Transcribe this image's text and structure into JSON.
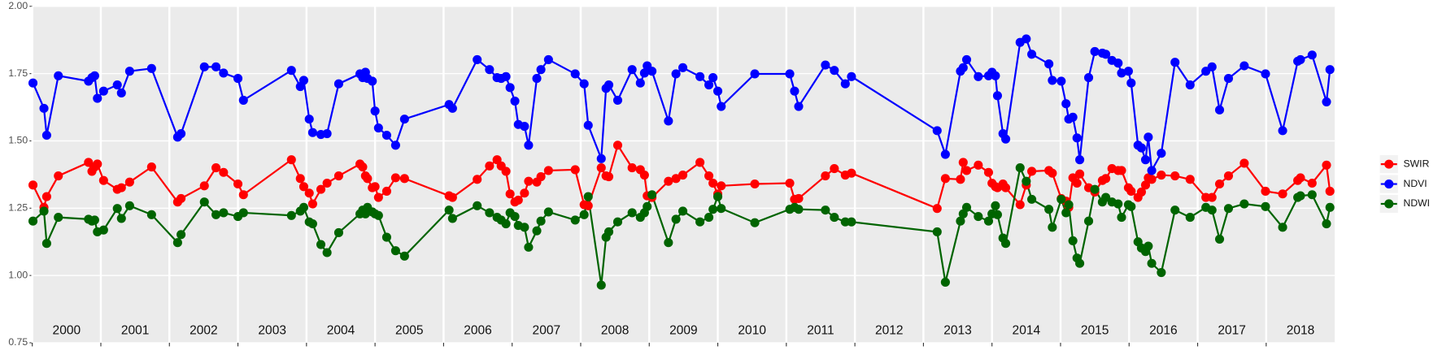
{
  "chart_data": {
    "type": "line",
    "x": [
      2000.01,
      2000.17,
      2000.21,
      2000.38,
      2000.82,
      2000.87,
      2000.91,
      2000.95,
      2001.04,
      2001.24,
      2001.3,
      2001.42,
      2001.74,
      2002.12,
      2002.17,
      2002.51,
      2002.68,
      2002.79,
      2003.0,
      2003.08,
      2003.78,
      2003.91,
      2003.96,
      2004.04,
      2004.09,
      2004.21,
      2004.3,
      2004.47,
      2004.78,
      2004.82,
      2004.86,
      2004.89,
      2004.96,
      2005.0,
      2005.05,
      2005.17,
      2005.3,
      2005.43,
      2006.08,
      2006.13,
      2006.49,
      2006.67,
      2006.78,
      2006.84,
      2006.91,
      2006.97,
      2007.04,
      2007.09,
      2007.18,
      2007.24,
      2007.36,
      2007.42,
      2007.53,
      2007.92,
      2008.05,
      2008.11,
      2008.3,
      2008.37,
      2008.41,
      2008.54,
      2008.75,
      2008.87,
      2008.93,
      2008.97,
      2009.04,
      2009.28,
      2009.39,
      2009.49,
      2009.74,
      2009.87,
      2009.93,
      2010.0,
      2010.05,
      2010.54,
      2011.05,
      2011.12,
      2011.18,
      2011.57,
      2011.7,
      2011.86,
      2011.95,
      2013.2,
      2013.32,
      2013.54,
      2013.58,
      2013.63,
      2013.8,
      2013.95,
      2014.0,
      2014.05,
      2014.08,
      2014.16,
      2014.2,
      2014.41,
      2014.5,
      2014.58,
      2014.83,
      2014.88,
      2015.01,
      2015.08,
      2015.12,
      2015.18,
      2015.24,
      2015.28,
      2015.41,
      2015.5,
      2015.61,
      2015.66,
      2015.75,
      2015.84,
      2015.89,
      2015.99,
      2016.03,
      2016.13,
      2016.18,
      2016.24,
      2016.28,
      2016.33,
      2016.47,
      2016.67,
      2016.89,
      2017.12,
      2017.21,
      2017.32,
      2017.45,
      2017.68,
      2017.99,
      2018.24,
      2018.46,
      2018.5,
      2018.67,
      2018.88,
      2018.93
    ],
    "series": [
      {
        "name": "SWIR",
        "color": "#ff0000",
        "values": [
          1.336,
          1.253,
          1.293,
          1.37,
          1.42,
          1.387,
          1.403,
          1.414,
          1.353,
          1.32,
          1.326,
          1.347,
          1.403,
          1.273,
          1.286,
          1.333,
          1.4,
          1.383,
          1.34,
          1.3,
          1.43,
          1.36,
          1.33,
          1.306,
          1.266,
          1.32,
          1.343,
          1.37,
          1.414,
          1.403,
          1.37,
          1.36,
          1.326,
          1.33,
          1.29,
          1.313,
          1.363,
          1.36,
          1.296,
          1.29,
          1.357,
          1.407,
          1.43,
          1.407,
          1.387,
          1.303,
          1.273,
          1.28,
          1.306,
          1.35,
          1.347,
          1.367,
          1.39,
          1.393,
          1.263,
          1.259,
          1.4,
          1.37,
          1.367,
          1.484,
          1.4,
          1.393,
          1.373,
          1.296,
          1.29,
          1.35,
          1.36,
          1.373,
          1.42,
          1.37,
          1.343,
          1.303,
          1.333,
          1.34,
          1.343,
          1.283,
          1.286,
          1.37,
          1.397,
          1.373,
          1.38,
          1.249,
          1.36,
          1.357,
          1.42,
          1.39,
          1.41,
          1.383,
          1.343,
          1.33,
          1.326,
          1.34,
          1.326,
          1.263,
          1.336,
          1.387,
          1.39,
          1.38,
          1.286,
          1.276,
          1.253,
          1.363,
          1.343,
          1.377,
          1.326,
          1.31,
          1.353,
          1.36,
          1.397,
          1.39,
          1.39,
          1.326,
          1.313,
          1.29,
          1.31,
          1.336,
          1.363,
          1.357,
          1.373,
          1.37,
          1.357,
          1.29,
          1.29,
          1.34,
          1.37,
          1.417,
          1.313,
          1.303,
          1.353,
          1.363,
          1.343,
          1.41,
          1.313
        ]
      },
      {
        "name": "NDVI",
        "color": "#0000ff",
        "values": [
          1.715,
          1.621,
          1.521,
          1.742,
          1.722,
          1.735,
          1.742,
          1.658,
          1.685,
          1.708,
          1.678,
          1.759,
          1.769,
          1.514,
          1.527,
          1.775,
          1.775,
          1.752,
          1.732,
          1.651,
          1.762,
          1.702,
          1.725,
          1.581,
          1.531,
          1.524,
          1.527,
          1.712,
          1.749,
          1.735,
          1.755,
          1.732,
          1.722,
          1.611,
          1.548,
          1.521,
          1.484,
          1.581,
          1.635,
          1.621,
          1.802,
          1.765,
          1.735,
          1.732,
          1.739,
          1.698,
          1.648,
          1.561,
          1.554,
          1.484,
          1.732,
          1.765,
          1.802,
          1.749,
          1.712,
          1.558,
          1.434,
          1.695,
          1.708,
          1.651,
          1.765,
          1.715,
          1.752,
          1.779,
          1.759,
          1.574,
          1.749,
          1.772,
          1.739,
          1.708,
          1.735,
          1.685,
          1.628,
          1.749,
          1.749,
          1.685,
          1.628,
          1.782,
          1.762,
          1.712,
          1.739,
          1.538,
          1.45,
          1.759,
          1.772,
          1.802,
          1.739,
          1.742,
          1.755,
          1.742,
          1.668,
          1.527,
          1.507,
          1.866,
          1.879,
          1.822,
          1.786,
          1.725,
          1.722,
          1.638,
          1.581,
          1.588,
          1.511,
          1.43,
          1.735,
          1.832,
          1.826,
          1.822,
          1.799,
          1.789,
          1.752,
          1.759,
          1.715,
          1.484,
          1.474,
          1.43,
          1.514,
          1.39,
          1.454,
          1.792,
          1.708,
          1.759,
          1.775,
          1.615,
          1.732,
          1.779,
          1.749,
          1.538,
          1.796,
          1.802,
          1.819,
          1.645,
          1.765
        ]
      },
      {
        "name": "NDWI",
        "color": "#006400",
        "values": [
          1.202,
          1.239,
          1.119,
          1.216,
          1.209,
          1.202,
          1.206,
          1.162,
          1.169,
          1.249,
          1.212,
          1.259,
          1.226,
          1.122,
          1.152,
          1.273,
          1.226,
          1.233,
          1.219,
          1.233,
          1.223,
          1.239,
          1.253,
          1.199,
          1.192,
          1.115,
          1.085,
          1.159,
          1.229,
          1.243,
          1.229,
          1.253,
          1.236,
          1.229,
          1.223,
          1.142,
          1.092,
          1.072,
          1.243,
          1.212,
          1.259,
          1.233,
          1.216,
          1.206,
          1.192,
          1.233,
          1.219,
          1.186,
          1.179,
          1.105,
          1.166,
          1.202,
          1.236,
          1.206,
          1.226,
          1.293,
          0.964,
          1.142,
          1.162,
          1.199,
          1.233,
          1.216,
          1.233,
          1.256,
          1.3,
          1.122,
          1.209,
          1.239,
          1.199,
          1.216,
          1.246,
          1.293,
          1.249,
          1.196,
          1.246,
          1.253,
          1.246,
          1.243,
          1.216,
          1.199,
          1.199,
          1.162,
          0.975,
          1.202,
          1.229,
          1.253,
          1.219,
          1.202,
          1.229,
          1.259,
          1.226,
          1.139,
          1.119,
          1.4,
          1.35,
          1.283,
          1.246,
          1.179,
          1.283,
          1.233,
          1.263,
          1.129,
          1.065,
          1.045,
          1.202,
          1.32,
          1.273,
          1.29,
          1.273,
          1.266,
          1.216,
          1.263,
          1.256,
          1.125,
          1.102,
          1.089,
          1.109,
          1.045,
          1.011,
          1.243,
          1.216,
          1.253,
          1.243,
          1.135,
          1.249,
          1.266,
          1.256,
          1.179,
          1.29,
          1.296,
          1.3,
          1.192,
          1.253
        ]
      }
    ],
    "xlim": [
      2000,
      2019
    ],
    "xticks": [
      2000,
      2001,
      2002,
      2003,
      2004,
      2005,
      2006,
      2007,
      2008,
      2009,
      2010,
      2011,
      2012,
      2013,
      2014,
      2015,
      2016,
      2017,
      2018
    ],
    "year_labels": [
      "2000",
      "2001",
      "2002",
      "2003",
      "2004",
      "2005",
      "2006",
      "2007",
      "2008",
      "2009",
      "2010",
      "2011",
      "2012",
      "2013",
      "2014",
      "2015",
      "2016",
      "2017",
      "2018"
    ],
    "ylim": [
      0.75,
      2.0
    ],
    "yticks": [
      0.75,
      {
        "value": 1.0,
        "label": "1.00"
      },
      1.25,
      {
        "value": 1.5,
        "label": "1.50"
      },
      1.75,
      {
        "value": 2.0,
        "label": "2.00"
      }
    ],
    "grid": true,
    "legend": "right"
  }
}
